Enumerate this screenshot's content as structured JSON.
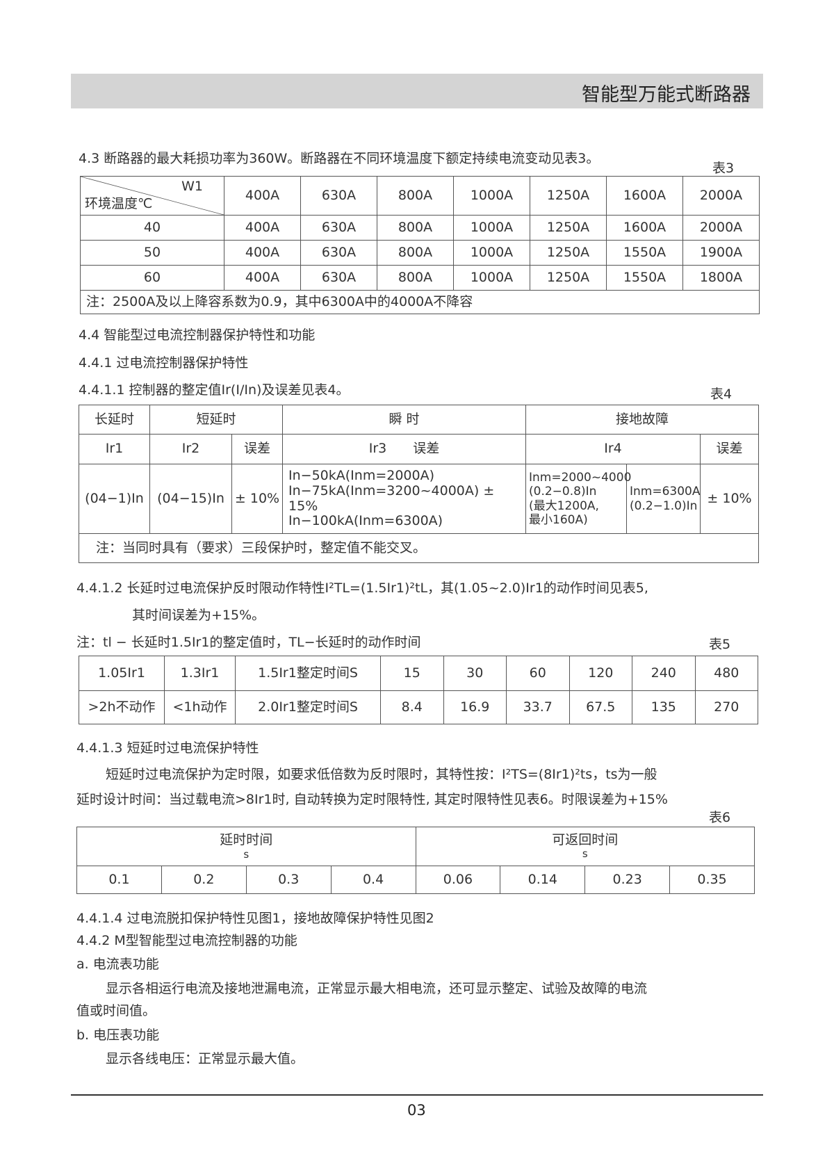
{
  "header": {
    "title": "智能型万能式断路器"
  },
  "s43": {
    "text": "4.3 断路器的最大耗损功率为360W。断路器在不同环境温度下额定持续电流变动见表3。",
    "table_label": "表3"
  },
  "table3": {
    "corner_top": "W1",
    "corner_bottom": "环境温度℃",
    "columns": [
      "400A",
      "630A",
      "800A",
      "1000A",
      "1250A",
      "1600A",
      "2000A"
    ],
    "rows": [
      [
        "40",
        "400A",
        "630A",
        "800A",
        "1000A",
        "1250A",
        "1600A",
        "2000A"
      ],
      [
        "50",
        "400A",
        "630A",
        "800A",
        "1000A",
        "1250A",
        "1550A",
        "1900A"
      ],
      [
        "60",
        "400A",
        "630A",
        "800A",
        "1000A",
        "1250A",
        "1550A",
        "1800A"
      ]
    ],
    "note": "注：2500A及以上降容系数为0.9，其中6300A中的4000A不降容"
  },
  "s44": "4.4 智能型过电流控制器保护特性和功能",
  "s441": "4.4.1 过电流控制器保护特性",
  "s4411": {
    "text": "4.4.1.1 控制器的整定值Ir(I/In)及误差见表4。",
    "table_label": "表4"
  },
  "table4": {
    "h1": [
      "长延时",
      "短延时",
      "瞬 时",
      "接地故障"
    ],
    "h2": [
      "Ir1",
      "Ir2",
      "误差",
      "Ir3　　误差",
      "Ir4",
      "误差"
    ],
    "row": [
      "(04−1)In",
      "(04−15)In",
      "± 10%",
      "In−50kA(Inm=2000A)\nIn−75kA(Inm=3200~4000A) ± 15%\nIn−100kA(Inm=6300A)",
      "Inm=2000~4000\n(0.2−0.8)In\n(最大1200A,\n最小160A)",
      "Inm=6300A\n(0.2−1.0)In",
      "± 10%"
    ],
    "note": "注：当同时具有（要求）三段保护时，整定值不能交叉。"
  },
  "s4412": {
    "line1": "4.4.1.2 长延时过电流保护反时限动作特性I²TL=(1.5Ir1)²tL，其(1.05~2.0)Ir1的动作时间见表5,",
    "line2": "其时间误差为+15%。",
    "note": "注：tl − 长延时1.5Ir1的整定值时，TL−长延时的动作时间",
    "table_label": "表5"
  },
  "table5": {
    "rows": [
      [
        "1.05Ir1",
        "1.3Ir1",
        "1.5Ir1整定时间S",
        "15",
        "30",
        "60",
        "120",
        "240",
        "480"
      ],
      [
        ">2h不动作",
        "<1h动作",
        "2.0Ir1整定时间S",
        "8.4",
        "16.9",
        "33.7",
        "67.5",
        "135",
        "270"
      ]
    ]
  },
  "s4413": {
    "title": "4.4.1.3 短延时过电流保护特性",
    "line1": "短延时过电流保护为定时限，如要求低倍数为反时限时，其特性按：I²TS=(8Ir1)²ts，ts为一般",
    "line2": "延时设计时间：当过载电流>8Ir1时, 自动转换为定时限特性, 其定时限特性见表6。时限误差为+15%",
    "table_label": "表6"
  },
  "table6": {
    "h1": "延时时间",
    "h1_unit": "s",
    "h2": "可返回时间",
    "h2_unit": "s",
    "values": [
      "0.1",
      "0.2",
      "0.3",
      "0.4",
      "0.06",
      "0.14",
      "0.23",
      "0.35"
    ]
  },
  "s4414": "4.4.1.4 过电流脱扣保护特性见图1，接地故障保护特性见图2",
  "s442": "4.4.2 M型智能型过电流控制器的功能",
  "a": {
    "title": "a. 电流表功能",
    "line1": "显示各相运行电流及接地泄漏电流，正常显示最大相电流，还可显示整定、试验及故障的电流",
    "line2": "值或时间值。"
  },
  "b": {
    "title": "b. 电压表功能",
    "line1": "显示各线电压：正常显示最大值。"
  },
  "footer": {
    "page": "03"
  }
}
